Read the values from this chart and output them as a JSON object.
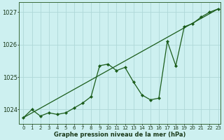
{
  "xlabel": "Graphe pression niveau de la mer (hPa)",
  "background_color": "#cdf0f0",
  "grid_color": "#aed8d8",
  "line_color": "#1a5c1a",
  "xlim_min": -0.5,
  "xlim_max": 23.3,
  "ylim_min": 1023.55,
  "ylim_max": 1027.3,
  "yticks": [
    1024,
    1025,
    1026,
    1027
  ],
  "xticks": [
    0,
    1,
    2,
    3,
    4,
    5,
    6,
    7,
    8,
    9,
    10,
    11,
    12,
    13,
    14,
    15,
    16,
    17,
    18,
    19,
    20,
    21,
    22,
    23
  ],
  "x": [
    0,
    1,
    2,
    3,
    4,
    5,
    6,
    7,
    8,
    9,
    10,
    11,
    12,
    13,
    14,
    15,
    16,
    17,
    18,
    19,
    20,
    21,
    22,
    23
  ],
  "y_main": [
    1023.75,
    1024.0,
    1023.8,
    1023.9,
    1023.85,
    1023.9,
    1024.05,
    1024.2,
    1024.4,
    1025.35,
    1025.4,
    1025.2,
    1025.3,
    1024.85,
    1024.45,
    1024.3,
    1024.35,
    1026.1,
    1025.35,
    1026.55,
    1026.65,
    1026.85,
    1027.0,
    1027.1
  ],
  "y_trend_x": [
    0,
    23
  ],
  "y_trend_y": [
    1023.75,
    1027.1
  ],
  "xlabel_fontsize": 6,
  "ytick_fontsize": 6,
  "xtick_fontsize": 5
}
